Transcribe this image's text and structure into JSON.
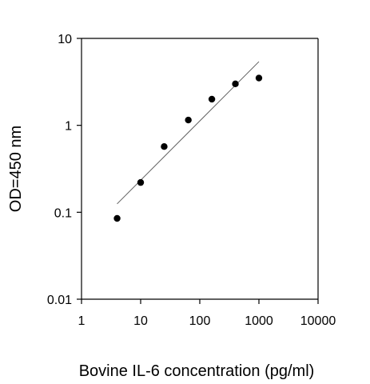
{
  "chart_data": {
    "type": "scatter",
    "title": "",
    "xlabel": "Bovine IL-6  concentration (pg/ml)",
    "ylabel": "OD=450 nm",
    "xscale": "log",
    "yscale": "log",
    "xlim": [
      1,
      10000
    ],
    "ylim": [
      0.01,
      10
    ],
    "grid": false,
    "legend": "none",
    "x_ticks": [
      1,
      10,
      100,
      1000,
      10000
    ],
    "x_tick_labels": [
      "1",
      "10",
      "100",
      "1000",
      "10000"
    ],
    "y_ticks": [
      0.01,
      0.1,
      1,
      10
    ],
    "y_tick_labels": [
      "0.01",
      "0.1",
      "1",
      "10"
    ],
    "series": [
      {
        "x": [
          4,
          10,
          25,
          64,
          160,
          400,
          1000
        ],
        "y": [
          0.085,
          0.22,
          0.57,
          1.15,
          2.0,
          3.0,
          3.5
        ],
        "color": "#000000",
        "marker": "circle"
      }
    ],
    "trendline": {
      "type": "linear-fit-log-log",
      "x": [
        4,
        1000
      ],
      "y": [
        0.125,
        5.4
      ],
      "color": "#555555"
    }
  }
}
